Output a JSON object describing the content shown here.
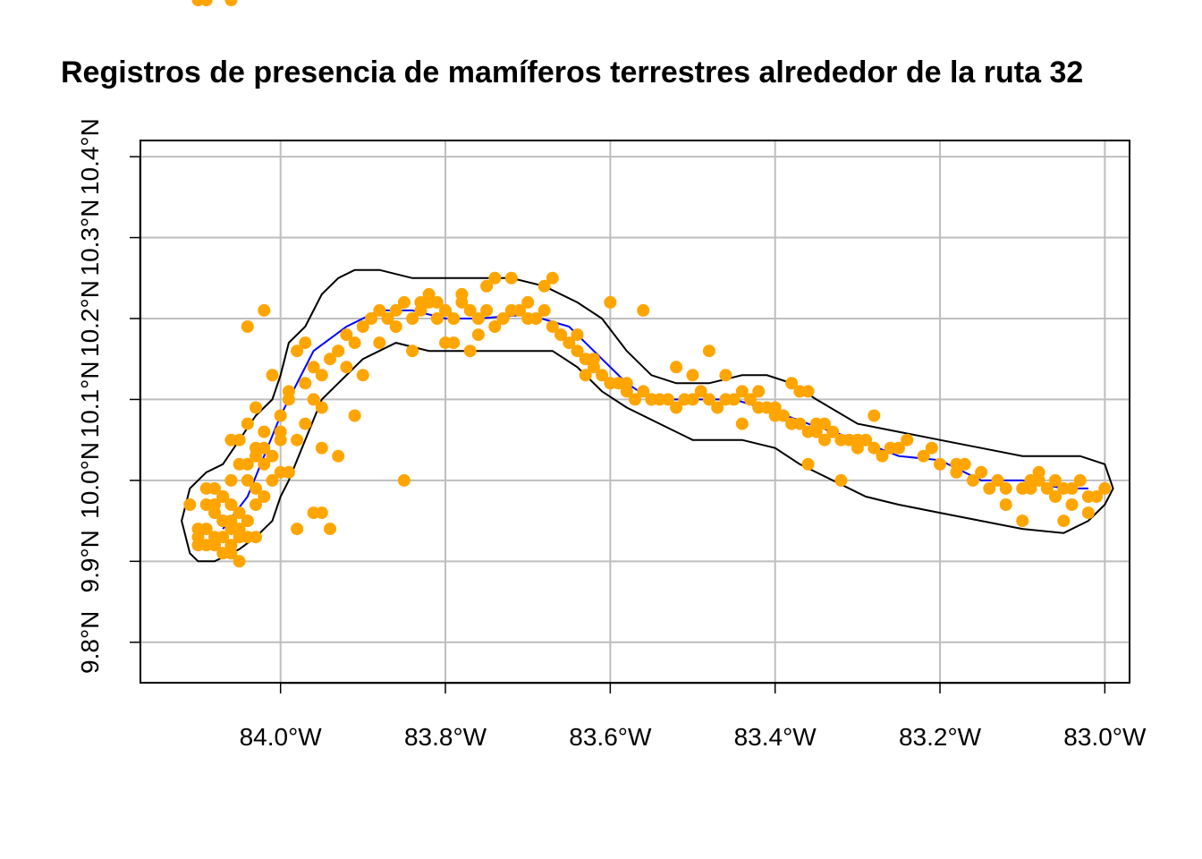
{
  "chart_data": {
    "type": "scatter",
    "title": "Registros de presencia de mamíferos terrestres alrededor de la ruta 32",
    "xlabel": "",
    "ylabel": "",
    "xlim": [
      -84.17,
      -82.97
    ],
    "ylim": [
      9.75,
      10.42
    ],
    "x_ticks": [
      {
        "value": -84.0,
        "label": "84.0°W"
      },
      {
        "value": -83.8,
        "label": "83.8°W"
      },
      {
        "value": -83.6,
        "label": "83.6°W"
      },
      {
        "value": -83.4,
        "label": "83.4°W"
      },
      {
        "value": -83.2,
        "label": "83.2°W"
      },
      {
        "value": -83.0,
        "label": "83.0°W"
      }
    ],
    "y_ticks": [
      {
        "value": 9.8,
        "label": "9.8°N"
      },
      {
        "value": 9.9,
        "label": "9.9°N"
      },
      {
        "value": 10.0,
        "label": "10.0°N"
      },
      {
        "value": 10.1,
        "label": "10.1°N"
      },
      {
        "value": 10.2,
        "label": "10.2°N"
      },
      {
        "value": 10.3,
        "label": "10.3°N"
      },
      {
        "value": 10.4,
        "label": "10.4°N"
      }
    ],
    "grid": true,
    "colors": {
      "points": "#ffa500",
      "route": "#0000ff",
      "buffer": "#000000",
      "grid": "#bebebe"
    },
    "route": {
      "x": [
        -84.07,
        -84.04,
        -84.0,
        -83.98,
        -83.96,
        -83.92,
        -83.88,
        -83.84,
        -83.8,
        -83.76,
        -83.7,
        -83.65,
        -83.62,
        -83.58,
        -83.55,
        -83.5,
        -83.45,
        -83.4,
        -83.36,
        -83.3,
        -83.25,
        -83.2,
        -83.15,
        -83.1,
        -83.05,
        -83.02
      ],
      "y": [
        9.94,
        9.98,
        10.08,
        10.12,
        10.16,
        10.19,
        10.21,
        10.21,
        10.2,
        10.2,
        10.205,
        10.19,
        10.16,
        10.12,
        10.1,
        10.1,
        10.1,
        10.085,
        10.07,
        10.05,
        10.03,
        10.025,
        10.0,
        10.0,
        9.99,
        9.99
      ]
    },
    "buffer": {
      "x": [
        -84.11,
        -84.12,
        -84.11,
        -84.09,
        -84.07,
        -84.05,
        -84.03,
        -84.01,
        -84.0,
        -83.99,
        -83.97,
        -83.95,
        -83.93,
        -83.91,
        -83.88,
        -83.84,
        -83.8,
        -83.76,
        -83.72,
        -83.68,
        -83.64,
        -83.61,
        -83.58,
        -83.55,
        -83.52,
        -83.48,
        -83.44,
        -83.41,
        -83.38,
        -83.35,
        -83.3,
        -83.25,
        -83.2,
        -83.15,
        -83.1,
        -83.06,
        -83.03,
        -83.0,
        -82.99,
        -83.0,
        -83.02,
        -83.05,
        -83.1,
        -83.15,
        -83.2,
        -83.25,
        -83.29,
        -83.33,
        -83.37,
        -83.4,
        -83.44,
        -83.48,
        -83.5,
        -83.54,
        -83.58,
        -83.61,
        -83.64,
        -83.67,
        -83.7,
        -83.74,
        -83.78,
        -83.82,
        -83.86,
        -83.9,
        -83.93,
        -83.95,
        -83.97,
        -83.99,
        -84.0,
        -84.01,
        -84.03,
        -84.05,
        -84.08,
        -84.1,
        -84.11
      ],
      "y": [
        9.91,
        9.95,
        9.99,
        10.01,
        10.02,
        10.05,
        10.08,
        10.1,
        10.13,
        10.17,
        10.19,
        10.23,
        10.25,
        10.26,
        10.26,
        10.25,
        10.25,
        10.25,
        10.25,
        10.24,
        10.22,
        10.2,
        10.16,
        10.13,
        10.12,
        10.12,
        10.13,
        10.13,
        10.12,
        10.1,
        10.07,
        10.06,
        10.05,
        10.04,
        10.03,
        10.03,
        10.03,
        10.02,
        9.99,
        9.97,
        9.95,
        9.935,
        9.94,
        9.95,
        9.96,
        9.97,
        9.98,
        10.0,
        10.02,
        10.04,
        10.05,
        10.05,
        10.05,
        10.07,
        10.09,
        10.11,
        10.14,
        10.16,
        10.16,
        10.16,
        10.16,
        10.16,
        10.17,
        10.15,
        10.12,
        10.1,
        10.05,
        10.0,
        9.98,
        9.95,
        9.93,
        9.915,
        9.9,
        9.9,
        9.91
      ]
    },
    "points_x": [
      -84.1,
      -84.09,
      -84.08,
      -84.07,
      -84.06,
      -84.05,
      -84.04,
      -84.08,
      -84.06,
      -84.05,
      -84.07,
      -84.09,
      -84.04,
      -84.03,
      -84.1,
      -84.06,
      -84.07,
      -84.08,
      -84.05,
      -84.06,
      -84.09,
      -84.08,
      -84.07,
      -84.05,
      -84.1,
      -84.03,
      -84.04,
      -84.02,
      -84.01,
      -84.0,
      -84.02,
      -84.03,
      -84.01,
      -83.99,
      -84.0,
      -84.02,
      -84.04,
      -84.06,
      -84.05,
      -84.03,
      -84.0,
      -83.98,
      -83.99,
      -84.01,
      -84.03,
      -84.04,
      -84.02,
      -84.0,
      -83.99,
      -83.97,
      -83.96,
      -83.98,
      -83.95,
      -83.97,
      -83.94,
      -83.93,
      -83.92,
      -83.9,
      -83.91,
      -83.89,
      -83.88,
      -83.87,
      -83.95,
      -83.96,
      -83.92,
      -83.9,
      -83.97,
      -83.95,
      -83.93,
      -83.88,
      -83.86,
      -83.85,
      -83.84,
      -83.83,
      -83.82,
      -83.81,
      -83.8,
      -83.79,
      -83.78,
      -83.77,
      -83.76,
      -83.75,
      -83.74,
      -83.73,
      -83.72,
      -83.71,
      -83.7,
      -83.69,
      -83.68,
      -83.67,
      -83.66,
      -83.65,
      -83.64,
      -83.63,
      -83.62,
      -83.61,
      -83.6,
      -83.59,
      -83.58,
      -83.57,
      -83.56,
      -83.55,
      -83.54,
      -83.53,
      -83.52,
      -83.51,
      -83.5,
      -83.49,
      -83.48,
      -83.47,
      -83.46,
      -83.45,
      -83.44,
      -83.43,
      -83.42,
      -83.41,
      -83.4,
      -83.39,
      -83.38,
      -83.37,
      -83.36,
      -83.35,
      -83.34,
      -83.33,
      -83.32,
      -83.31,
      -83.3,
      -83.29,
      -83.28,
      -83.27,
      -83.25,
      -83.22,
      -83.2,
      -83.18,
      -83.16,
      -83.14,
      -83.12,
      -83.1,
      -83.09,
      -83.08,
      -83.07,
      -83.06,
      -83.05,
      -83.04,
      -83.03,
      -83.02,
      -83.01,
      -83.0,
      -83.85,
      -83.8,
      -83.78,
      -83.75,
      -83.7,
      -83.68,
      -83.82,
      -83.76,
      -83.79,
      -83.84,
      -83.86,
      -83.83,
      -83.81,
      -83.77,
      -83.66,
      -83.64,
      -83.62,
      -83.6,
      -83.56,
      -83.52,
      -83.48,
      -83.46,
      -83.42,
      -83.38,
      -83.36,
      -83.34,
      -83.3,
      -83.26,
      -83.24,
      -83.18,
      -83.15,
      -83.12,
      -83.1,
      -83.08,
      -83.06,
      -83.04,
      -83.02,
      -83.05,
      -83.09,
      -83.13,
      -83.17,
      -83.21,
      -83.35,
      -83.37,
      -83.36,
      -83.32,
      -83.28,
      -83.55,
      -83.58,
      -83.5,
      -83.44,
      -83.4,
      -83.63,
      -83.67,
      -83.72,
      -83.74,
      -83.91,
      -83.93,
      -83.96,
      -84.02,
      -84.04,
      -84.06,
      -83.98,
      -83.95,
      -83.94,
      -84.07,
      -84.09,
      -84.11,
      -84.05,
      -84.06,
      -84.08,
      -84.04,
      -84.03,
      -84.07,
      -84.06,
      -84.1,
      -84.09
    ],
    "points_y": [
      9.93,
      9.94,
      9.92,
      9.93,
      9.92,
      9.94,
      9.95,
      9.96,
      9.91,
      9.9,
      9.95,
      9.92,
      9.93,
      9.97,
      9.94,
      9.97,
      9.98,
      9.99,
      9.96,
      9.95,
      9.97,
      9.93,
      9.91,
      9.93,
      9.92,
      9.99,
      10.0,
      10.02,
      10.03,
      10.05,
      10.06,
      10.04,
      10.0,
      10.01,
      10.08,
      9.98,
      10.02,
      10.0,
      10.05,
      10.03,
      10.06,
      10.05,
      10.11,
      10.13,
      10.09,
      10.07,
      10.04,
      10.01,
      10.1,
      10.12,
      10.14,
      10.16,
      10.13,
      10.17,
      10.15,
      10.16,
      10.18,
      10.19,
      10.17,
      10.2,
      10.21,
      10.2,
      10.09,
      10.1,
      10.14,
      10.13,
      10.07,
      10.04,
      10.16,
      10.17,
      10.21,
      10.22,
      10.2,
      10.21,
      10.23,
      10.22,
      10.21,
      10.2,
      10.22,
      10.21,
      10.2,
      10.21,
      10.19,
      10.2,
      10.21,
      10.21,
      10.2,
      10.2,
      10.21,
      10.19,
      10.18,
      10.17,
      10.16,
      10.15,
      10.14,
      10.13,
      10.12,
      10.12,
      10.11,
      10.1,
      10.11,
      10.1,
      10.1,
      10.1,
      10.09,
      10.1,
      10.1,
      10.11,
      10.1,
      10.09,
      10.1,
      10.1,
      10.11,
      10.1,
      10.09,
      10.09,
      10.08,
      10.08,
      10.07,
      10.07,
      10.06,
      10.06,
      10.05,
      10.06,
      10.05,
      10.05,
      10.04,
      10.05,
      10.04,
      10.03,
      10.04,
      10.03,
      10.02,
      10.01,
      10.0,
      9.99,
      9.99,
      9.99,
      10.0,
      10.0,
      9.99,
      10.0,
      9.99,
      9.99,
      10.0,
      9.98,
      9.98,
      9.99,
      10.0,
      10.17,
      10.23,
      10.24,
      10.22,
      10.24,
      10.22,
      10.18,
      10.17,
      10.16,
      10.19,
      10.22,
      10.2,
      10.16,
      10.18,
      10.18,
      10.15,
      10.22,
      10.21,
      10.14,
      10.16,
      10.13,
      10.11,
      10.12,
      10.11,
      10.07,
      10.05,
      10.04,
      10.05,
      10.02,
      10.01,
      9.97,
      9.95,
      10.01,
      9.98,
      9.97,
      9.96,
      9.95,
      9.99,
      10.0,
      10.02,
      10.04,
      10.07,
      10.11,
      10.02,
      10.0,
      10.08,
      10.1,
      10.12,
      10.13,
      10.07,
      10.09,
      10.13,
      10.25,
      10.25,
      10.25,
      10.08,
      10.03,
      9.96,
      10.21,
      10.19,
      10.05,
      9.94,
      9.96,
      9.94,
      9.98,
      9.99,
      9.97,
      10.02,
      9.94,
      9.97,
      9.95,
      9.93,
      9.95
    ]
  }
}
